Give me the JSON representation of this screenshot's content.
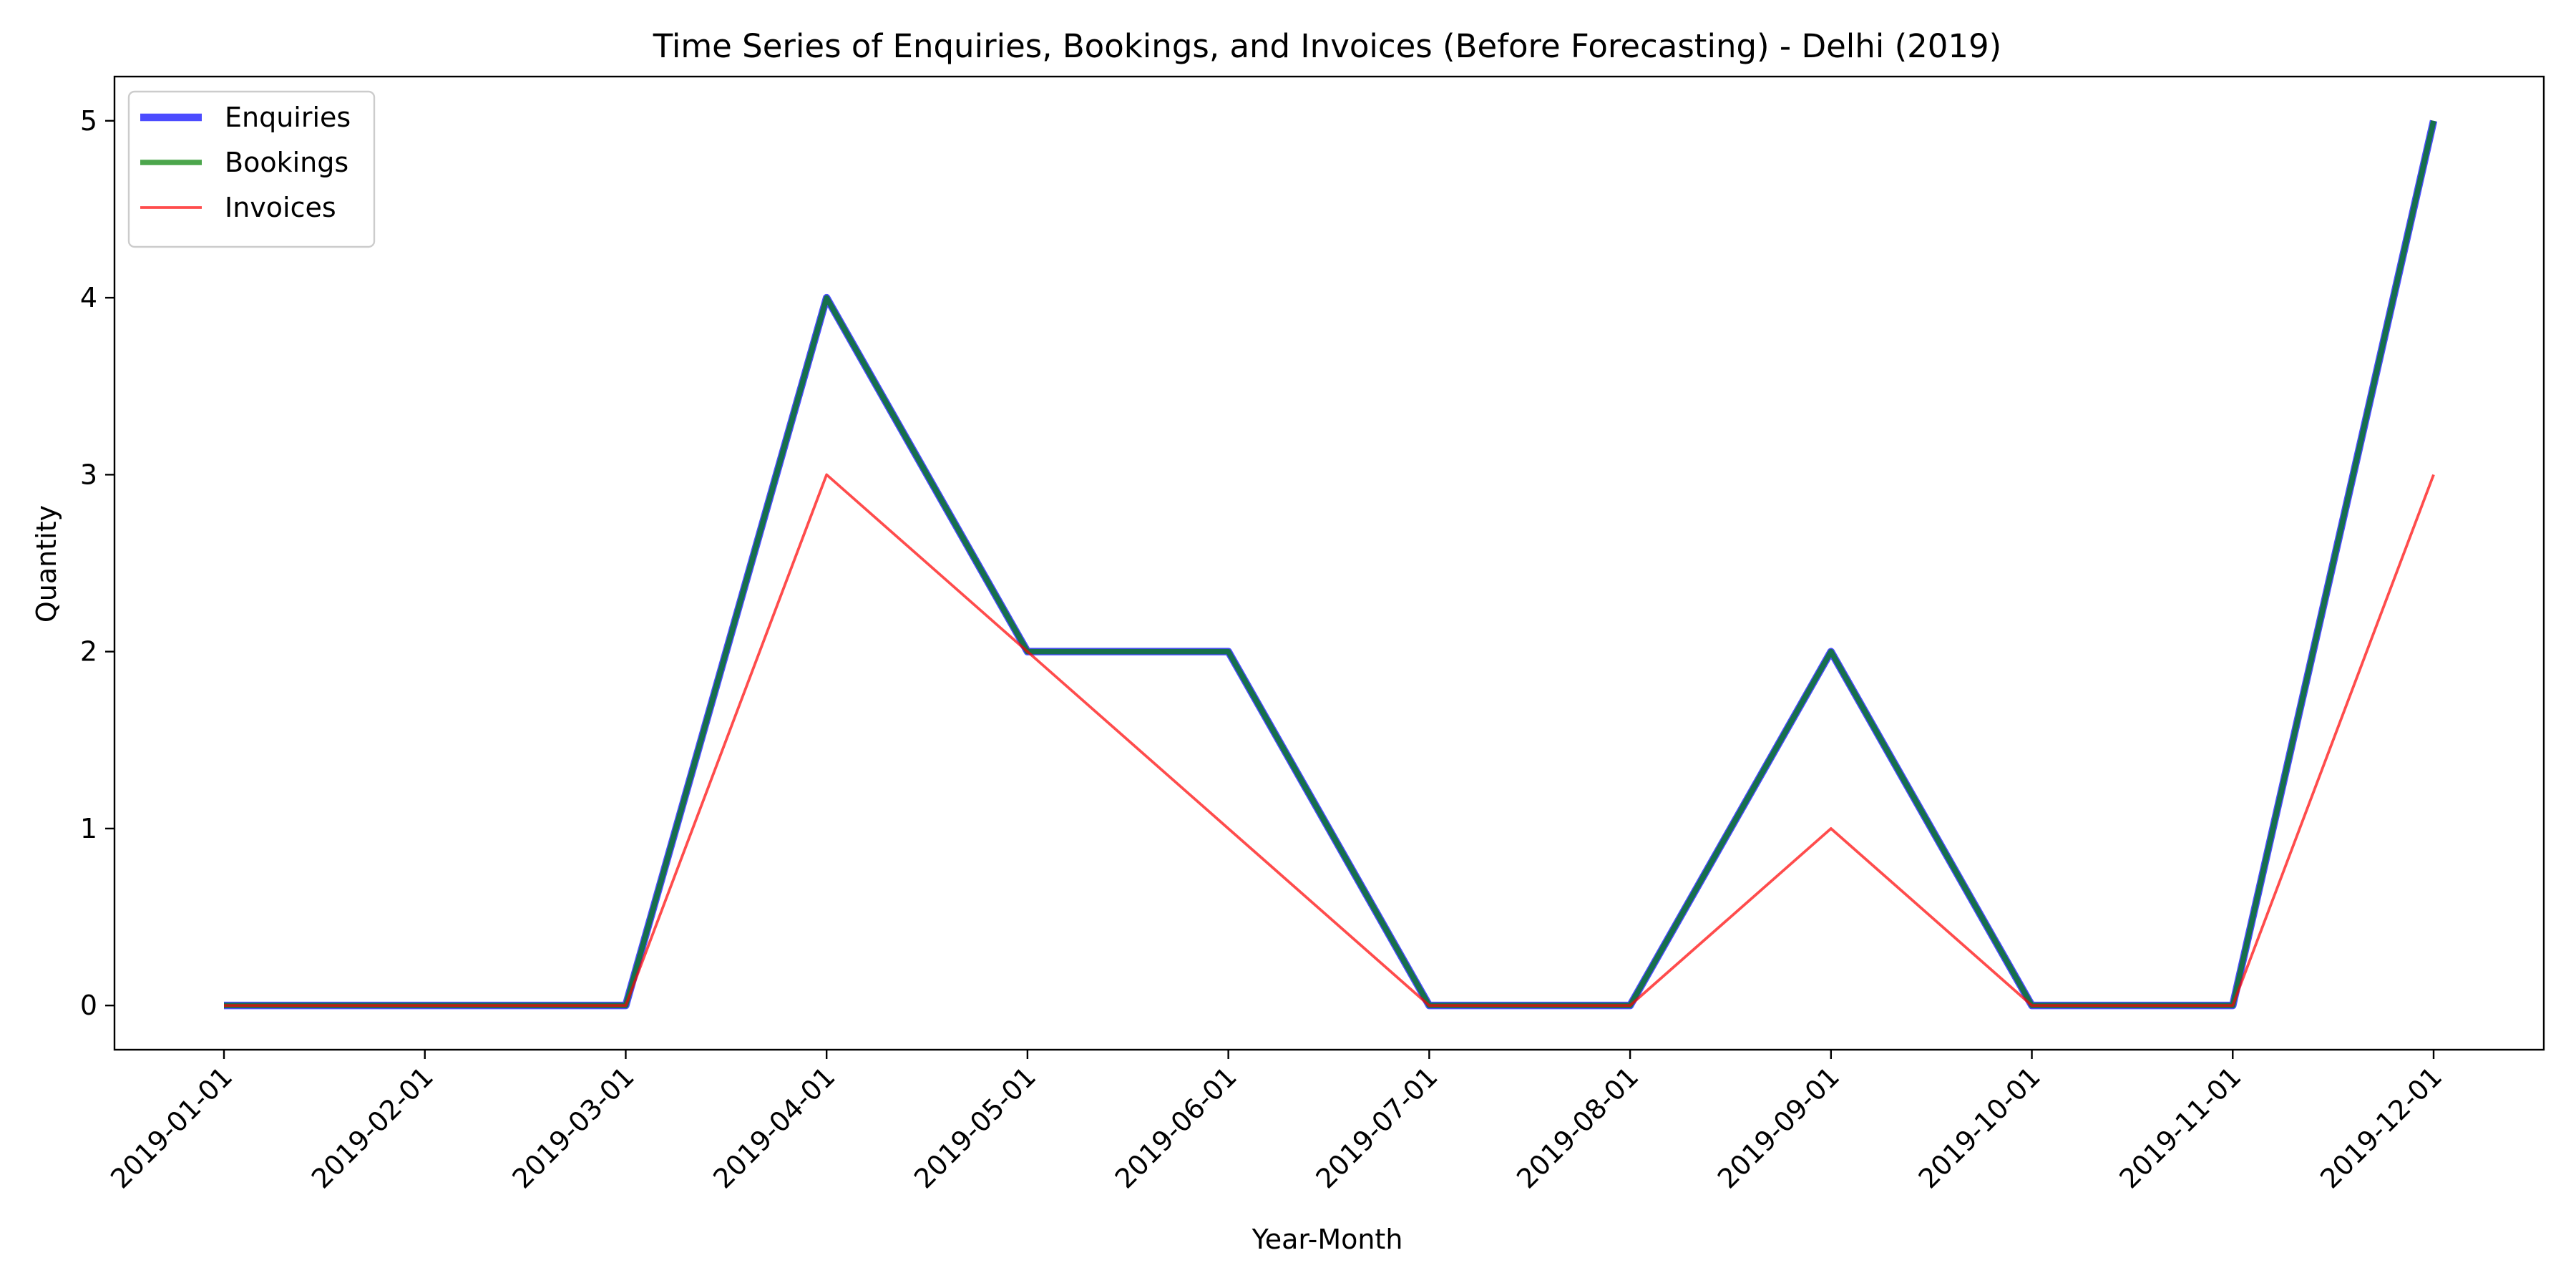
{
  "chart_data": {
    "type": "line",
    "title": "Time Series of Enquiries, Bookings, and Invoices (Before Forecasting) - Delhi (2019)",
    "xlabel": "Year-Month",
    "ylabel": "Quantity",
    "categories": [
      "2019-01-01",
      "2019-02-01",
      "2019-03-01",
      "2019-04-01",
      "2019-05-01",
      "2019-06-01",
      "2019-07-01",
      "2019-08-01",
      "2019-09-01",
      "2019-10-01",
      "2019-11-01",
      "2019-12-01"
    ],
    "ylim": [
      -0.25,
      5.25
    ],
    "yticks": [
      0,
      1,
      2,
      3,
      4,
      5
    ],
    "grid": false,
    "legend_position": "top-left",
    "series": [
      {
        "name": "Enquiries",
        "color": "#0000ff",
        "alpha": 0.7,
        "width": "thick",
        "values": [
          0,
          0,
          0,
          4,
          2,
          2,
          0,
          0,
          2,
          0,
          0,
          5
        ]
      },
      {
        "name": "Bookings",
        "color": "#008000",
        "alpha": 0.7,
        "width": "medium",
        "values": [
          0,
          0,
          0,
          4,
          2,
          2,
          0,
          0,
          2,
          0,
          0,
          5
        ]
      },
      {
        "name": "Invoices",
        "color": "#ff0000",
        "alpha": 0.7,
        "width": "thin",
        "values": [
          0,
          0,
          0,
          3,
          2,
          1,
          0,
          0,
          1,
          0,
          0,
          3
        ]
      }
    ]
  }
}
